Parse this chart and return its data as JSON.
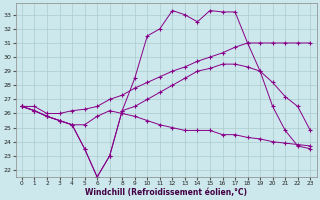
{
  "xlabel": "Windchill (Refroidissement éolien,°C)",
  "background_color": "#cce8ec",
  "line_color": "#880088",
  "grid_color": "#aacccc",
  "xlim": [
    -0.5,
    23.5
  ],
  "ylim": [
    21.5,
    33.8
  ],
  "xticks": [
    0,
    1,
    2,
    3,
    4,
    5,
    6,
    7,
    8,
    9,
    10,
    11,
    12,
    13,
    14,
    15,
    16,
    17,
    18,
    19,
    20,
    21,
    22,
    23
  ],
  "yticks": [
    22,
    23,
    24,
    25,
    26,
    27,
    28,
    29,
    30,
    31,
    32,
    33
  ],
  "lines": [
    {
      "x": [
        0,
        1,
        2,
        3,
        4,
        5,
        6,
        7,
        8,
        9,
        10,
        11,
        12,
        13,
        14,
        15,
        16,
        17,
        18,
        19,
        20,
        21,
        22,
        23
      ],
      "y": [
        26.5,
        26.5,
        26.0,
        26.0,
        26.2,
        26.3,
        26.5,
        27.0,
        27.3,
        27.8,
        28.2,
        28.6,
        29.0,
        29.3,
        29.7,
        30.0,
        30.3,
        30.7,
        31.0,
        31.0,
        31.0,
        31.0,
        31.0,
        31.0
      ]
    },
    {
      "x": [
        0,
        1,
        2,
        3,
        4,
        5,
        6,
        7,
        8,
        9,
        10,
        11,
        12,
        13,
        14,
        15,
        16,
        17,
        18,
        19,
        20,
        21,
        22,
        23
      ],
      "y": [
        26.5,
        26.2,
        25.8,
        25.5,
        25.2,
        23.5,
        21.5,
        23.0,
        26.2,
        28.5,
        31.5,
        32.0,
        33.3,
        33.0,
        32.5,
        33.3,
        33.2,
        33.2,
        31.0,
        29.0,
        26.5,
        24.8,
        23.7,
        23.5
      ]
    },
    {
      "x": [
        0,
        1,
        2,
        3,
        4,
        5,
        6,
        7,
        8,
        9,
        10,
        11,
        12,
        13,
        14,
        15,
        16,
        17,
        18,
        19,
        20,
        21,
        22,
        23
      ],
      "y": [
        26.5,
        26.2,
        25.8,
        25.5,
        25.2,
        23.5,
        21.5,
        23.0,
        26.2,
        26.5,
        27.0,
        27.5,
        28.0,
        28.5,
        29.0,
        29.2,
        29.5,
        29.5,
        29.3,
        29.0,
        28.2,
        27.2,
        26.5,
        24.8
      ]
    },
    {
      "x": [
        0,
        1,
        2,
        3,
        4,
        5,
        6,
        7,
        8,
        9,
        10,
        11,
        12,
        13,
        14,
        15,
        16,
        17,
        18,
        19,
        20,
        21,
        22,
        23
      ],
      "y": [
        26.5,
        26.2,
        25.8,
        25.5,
        25.2,
        25.2,
        25.8,
        26.2,
        26.0,
        25.8,
        25.5,
        25.2,
        25.0,
        24.8,
        24.8,
        24.8,
        24.5,
        24.5,
        24.3,
        24.2,
        24.0,
        23.9,
        23.8,
        23.7
      ]
    }
  ]
}
